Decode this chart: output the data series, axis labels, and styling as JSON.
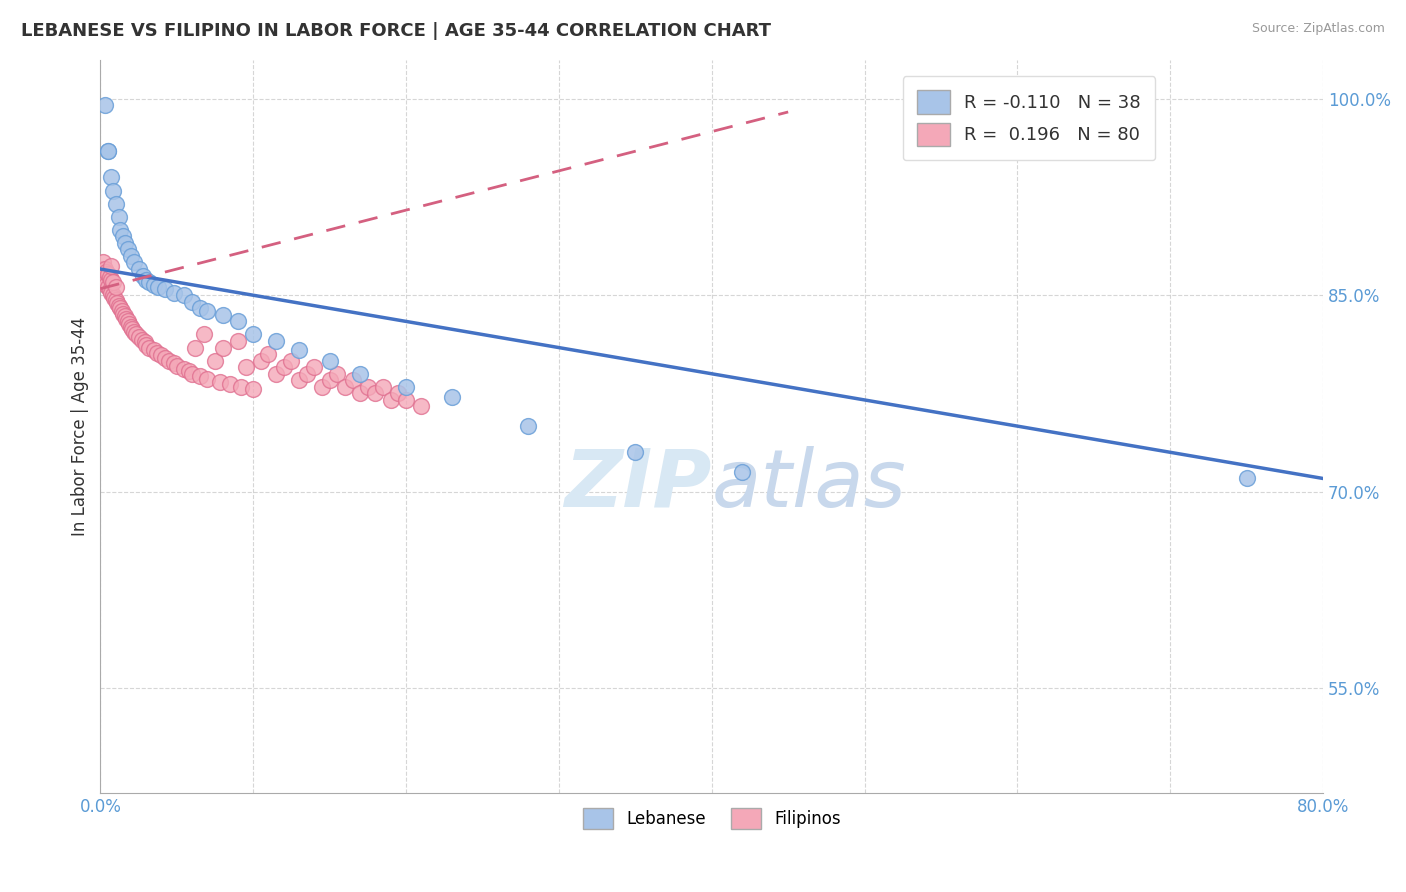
{
  "title": "LEBANESE VS FILIPINO IN LABOR FORCE | AGE 35-44 CORRELATION CHART",
  "source_text": "Source: ZipAtlas.com",
  "ylabel": "In Labor Force | Age 35-44",
  "xlim": [
    0.0,
    0.8
  ],
  "ylim": [
    0.47,
    1.03
  ],
  "ytick_values": [
    0.55,
    0.7,
    0.85,
    1.0
  ],
  "xtick_values": [
    0.0,
    0.1,
    0.2,
    0.3,
    0.4,
    0.5,
    0.6,
    0.7,
    0.8
  ],
  "R_lebanese": -0.11,
  "N_lebanese": 38,
  "R_filipino": 0.196,
  "N_filipino": 80,
  "lebanese_color": "#a8c4e8",
  "filipino_color": "#f4a8b8",
  "lebanese_edge": "#6a9fd8",
  "filipino_edge": "#e07090",
  "trend_lebanese_color": "#4472c4",
  "trend_filipino_color": "#d46080",
  "watermark_color": "#d8e8f4",
  "background_color": "#ffffff",
  "legend_lebanese_label": "Lebanese",
  "legend_filipino_label": "Filipinos",
  "lebanese_x": [
    0.003,
    0.005,
    0.005,
    0.007,
    0.008,
    0.01,
    0.012,
    0.013,
    0.015,
    0.016,
    0.018,
    0.02,
    0.022,
    0.025,
    0.028,
    0.03,
    0.032,
    0.035,
    0.038,
    0.042,
    0.048,
    0.055,
    0.06,
    0.065,
    0.07,
    0.08,
    0.09,
    0.1,
    0.115,
    0.13,
    0.15,
    0.17,
    0.2,
    0.23,
    0.28,
    0.35,
    0.42,
    0.75
  ],
  "lebanese_y": [
    0.995,
    0.96,
    0.96,
    0.94,
    0.93,
    0.92,
    0.91,
    0.9,
    0.895,
    0.89,
    0.885,
    0.88,
    0.875,
    0.87,
    0.865,
    0.862,
    0.86,
    0.858,
    0.856,
    0.855,
    0.852,
    0.85,
    0.845,
    0.84,
    0.838,
    0.835,
    0.83,
    0.82,
    0.815,
    0.808,
    0.8,
    0.79,
    0.78,
    0.772,
    0.75,
    0.73,
    0.715,
    0.71
  ],
  "filipino_x": [
    0.001,
    0.002,
    0.002,
    0.003,
    0.003,
    0.004,
    0.004,
    0.005,
    0.005,
    0.006,
    0.006,
    0.007,
    0.007,
    0.007,
    0.008,
    0.008,
    0.009,
    0.01,
    0.01,
    0.011,
    0.012,
    0.013,
    0.014,
    0.015,
    0.016,
    0.017,
    0.018,
    0.019,
    0.02,
    0.021,
    0.022,
    0.023,
    0.025,
    0.027,
    0.029,
    0.03,
    0.032,
    0.035,
    0.037,
    0.04,
    0.042,
    0.045,
    0.048,
    0.05,
    0.055,
    0.058,
    0.06,
    0.062,
    0.065,
    0.068,
    0.07,
    0.075,
    0.078,
    0.08,
    0.085,
    0.09,
    0.092,
    0.095,
    0.1,
    0.105,
    0.11,
    0.115,
    0.12,
    0.125,
    0.13,
    0.135,
    0.14,
    0.145,
    0.15,
    0.155,
    0.16,
    0.165,
    0.17,
    0.175,
    0.18,
    0.185,
    0.19,
    0.195,
    0.2,
    0.21
  ],
  "filipino_y": [
    0.87,
    0.865,
    0.875,
    0.86,
    0.87,
    0.858,
    0.868,
    0.856,
    0.866,
    0.854,
    0.864,
    0.852,
    0.862,
    0.872,
    0.85,
    0.86,
    0.848,
    0.846,
    0.856,
    0.844,
    0.842,
    0.84,
    0.838,
    0.836,
    0.834,
    0.832,
    0.83,
    0.828,
    0.826,
    0.824,
    0.822,
    0.82,
    0.818,
    0.816,
    0.814,
    0.812,
    0.81,
    0.808,
    0.806,
    0.804,
    0.802,
    0.8,
    0.798,
    0.796,
    0.794,
    0.792,
    0.79,
    0.81,
    0.788,
    0.82,
    0.786,
    0.8,
    0.784,
    0.81,
    0.782,
    0.815,
    0.78,
    0.795,
    0.778,
    0.8,
    0.805,
    0.79,
    0.795,
    0.8,
    0.785,
    0.79,
    0.795,
    0.78,
    0.785,
    0.79,
    0.78,
    0.785,
    0.775,
    0.78,
    0.775,
    0.78,
    0.77,
    0.775,
    0.77,
    0.765
  ],
  "trend_leb_x0": 0.0,
  "trend_leb_y0": 0.87,
  "trend_leb_x1": 0.8,
  "trend_leb_y1": 0.71,
  "trend_fil_x0": 0.0,
  "trend_fil_y0": 0.855,
  "trend_fil_x1": 0.45,
  "trend_fil_y1": 0.99
}
